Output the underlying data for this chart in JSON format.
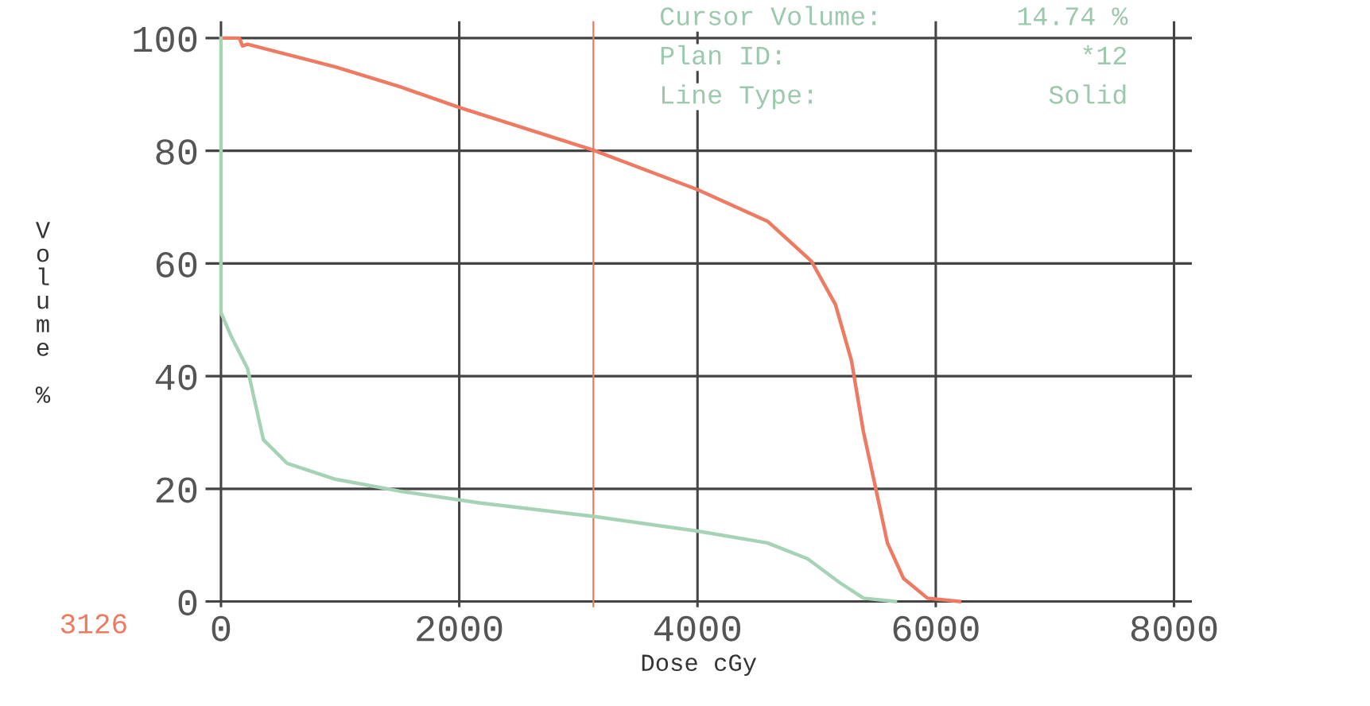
{
  "chart_data": {
    "type": "line",
    "xlabel": "Dose cGy",
    "ylabel": "Volume %",
    "xlim": [
      -130,
      8150
    ],
    "ylim": [
      -1,
      103
    ],
    "xticks": [
      0,
      2000,
      4000,
      6000,
      8000
    ],
    "yticks": [
      0,
      20,
      40,
      60,
      80,
      100
    ],
    "grid": true,
    "legend": false,
    "line_style": "solid",
    "marker": "none",
    "series": [
      {
        "color": "#ef7a62",
        "x": [
          0,
          154,
          181,
          222,
          960,
          1498,
          2000,
          3126,
          4000,
          4587,
          4956,
          5158,
          5292,
          5393,
          5494,
          5594,
          5729,
          5930,
          6199
        ],
        "values": [
          100,
          100,
          98.6,
          98.9,
          94.9,
          91.4,
          87.7,
          80.1,
          73.1,
          67.5,
          60.4,
          52.7,
          42.8,
          30.1,
          20.3,
          10.4,
          4.1,
          0.6,
          0
        ]
      },
      {
        "color": "#a6d2b6",
        "x": [
          0,
          0,
          87,
          222,
          356,
          557,
          960,
          1498,
          2169,
          3126,
          4000,
          4587,
          4923,
          5191,
          5393,
          5661
        ],
        "values": [
          100,
          51.3,
          47,
          41.4,
          28.7,
          24.5,
          21.7,
          19.6,
          17.5,
          15.1,
          12.5,
          10.4,
          7.6,
          3.4,
          0.6,
          0
        ]
      }
    ],
    "ref_lines": [
      {
        "axis": "x",
        "value": 3126,
        "label": "3126",
        "color": "#ef7a62"
      }
    ],
    "annotations": [
      "Cursor Volume:",
      "14.74 %",
      "Plan ID:",
      "*12",
      "Line Type:",
      "Solid"
    ]
  }
}
